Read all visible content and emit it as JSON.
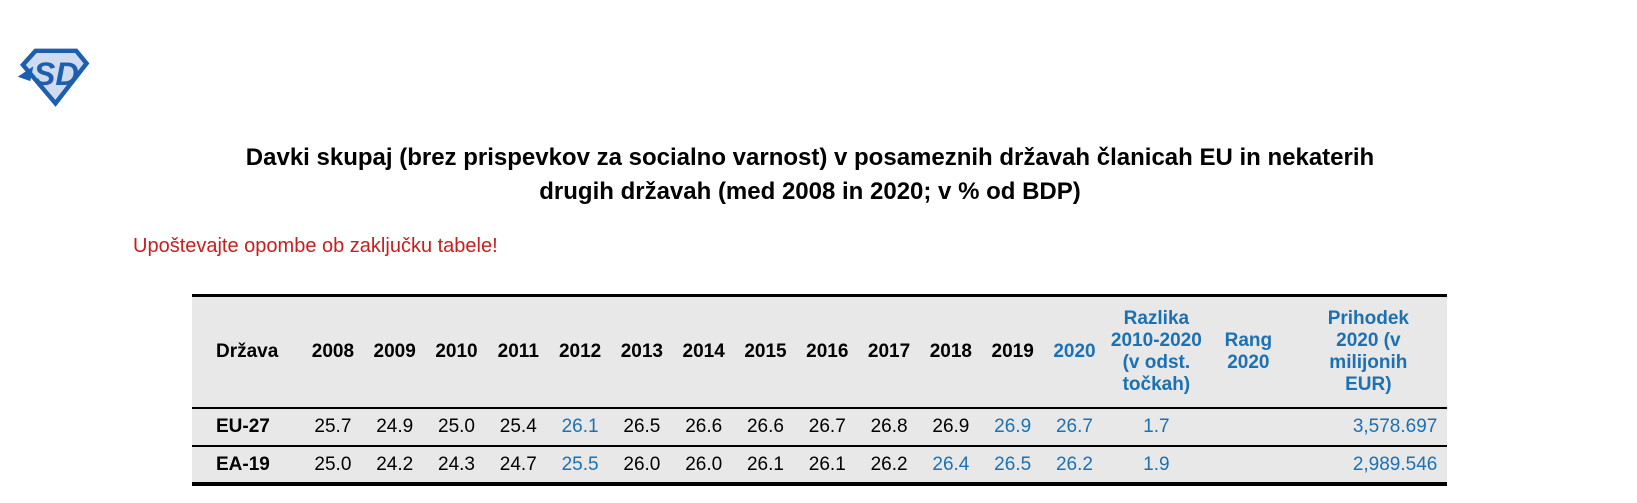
{
  "logo": {
    "text": "SD",
    "outline_color": "#1d5fae",
    "fill_color": "#cfdcef"
  },
  "title": {
    "line1": "Davki skupaj (brez prispevkov za socialno varnost) v posameznih državah članicah EU in nekaterih",
    "line2": "drugih državah (med 2008 in 2020; v % od BDP)"
  },
  "note": {
    "text": "Upoštevajte opombe ob zaključku tabele!",
    "color": "#c81e1e"
  },
  "table": {
    "accent_blue": "#1b71b4",
    "header_bg": "#e8e8e8",
    "columns": [
      {
        "id": "drzava",
        "label": "Država",
        "blue": false
      },
      {
        "id": "y2008",
        "label": "2008",
        "blue": false
      },
      {
        "id": "y2009",
        "label": "2009",
        "blue": false
      },
      {
        "id": "y2010",
        "label": "2010",
        "blue": false
      },
      {
        "id": "y2011",
        "label": "2011",
        "blue": false
      },
      {
        "id": "y2012",
        "label": "2012",
        "blue": false
      },
      {
        "id": "y2013",
        "label": "2013",
        "blue": false
      },
      {
        "id": "y2014",
        "label": "2014",
        "blue": false
      },
      {
        "id": "y2015",
        "label": "2015",
        "blue": false
      },
      {
        "id": "y2016",
        "label": "2016",
        "blue": false
      },
      {
        "id": "y2017",
        "label": "2017",
        "blue": false
      },
      {
        "id": "y2018",
        "label": "2018",
        "blue": false
      },
      {
        "id": "y2019",
        "label": "2019",
        "blue": false
      },
      {
        "id": "y2020",
        "label": "2020",
        "blue": true
      },
      {
        "id": "razlika",
        "label": "Razlika 2010-2020 (v odst. točkah)",
        "blue": true
      },
      {
        "id": "rang",
        "label": "Rang 2020",
        "blue": true
      },
      {
        "id": "prihodek",
        "label": "Prihodek 2020 (v milijonih EUR)",
        "blue": true
      }
    ],
    "rows": [
      {
        "label": "EU-27",
        "cells": [
          {
            "text": "25.7",
            "blue": false
          },
          {
            "text": "24.9",
            "blue": false
          },
          {
            "text": "25.0",
            "blue": false
          },
          {
            "text": "25.4",
            "blue": false
          },
          {
            "text": "26.1",
            "blue": true
          },
          {
            "text": "26.5",
            "blue": false
          },
          {
            "text": "26.6",
            "blue": false
          },
          {
            "text": "26.6",
            "blue": false
          },
          {
            "text": "26.7",
            "blue": false
          },
          {
            "text": "26.8",
            "blue": false
          },
          {
            "text": "26.9",
            "blue": false
          },
          {
            "text": "26.9",
            "blue": true
          },
          {
            "text": "26.7",
            "blue": true
          },
          {
            "text": "1.7",
            "blue": true
          },
          {
            "text": "",
            "blue": false
          },
          {
            "text": "3,578.697",
            "blue": true
          }
        ]
      },
      {
        "label": "EA-19",
        "cells": [
          {
            "text": "25.0",
            "blue": false
          },
          {
            "text": "24.2",
            "blue": false
          },
          {
            "text": "24.3",
            "blue": false
          },
          {
            "text": "24.7",
            "blue": false
          },
          {
            "text": "25.5",
            "blue": true
          },
          {
            "text": "26.0",
            "blue": false
          },
          {
            "text": "26.0",
            "blue": false
          },
          {
            "text": "26.1",
            "blue": false
          },
          {
            "text": "26.1",
            "blue": false
          },
          {
            "text": "26.2",
            "blue": false
          },
          {
            "text": "26.4",
            "blue": true
          },
          {
            "text": "26.5",
            "blue": true
          },
          {
            "text": "26.2",
            "blue": true
          },
          {
            "text": "1.9",
            "blue": true
          },
          {
            "text": "",
            "blue": false
          },
          {
            "text": "2,989.546",
            "blue": true
          }
        ]
      }
    ]
  }
}
